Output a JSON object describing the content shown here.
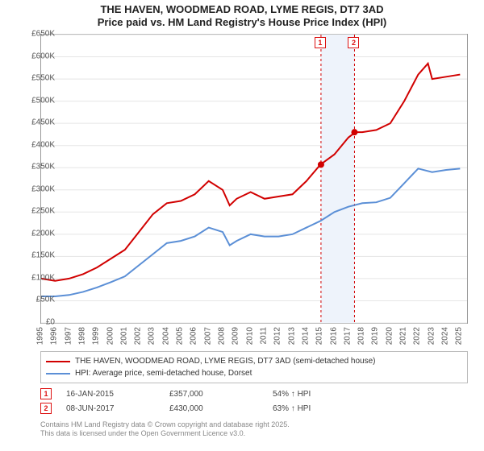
{
  "title": {
    "line1": "THE HAVEN, WOODMEAD ROAD, LYME REGIS, DT7 3AD",
    "line2": "Price paid vs. HM Land Registry's House Price Index (HPI)",
    "fontsize": 13,
    "color": "#222222"
  },
  "chart": {
    "type": "line",
    "background_color": "#ffffff",
    "border_color": "#999999",
    "grid_color": "#e5e5e5",
    "xlim": [
      1995,
      2025.5
    ],
    "ylim": [
      0,
      650
    ],
    "ytick_step": 50,
    "y_tick_labels": [
      "£0",
      "£50K",
      "£100K",
      "£150K",
      "£200K",
      "£250K",
      "£300K",
      "£350K",
      "£400K",
      "£450K",
      "£500K",
      "£550K",
      "£600K",
      "£650K"
    ],
    "x_tick_labels": [
      "1995",
      "1996",
      "1997",
      "1998",
      "1999",
      "2000",
      "2001",
      "2002",
      "2003",
      "2004",
      "2005",
      "2006",
      "2007",
      "2008",
      "2009",
      "2010",
      "2011",
      "2012",
      "2013",
      "2014",
      "2015",
      "2016",
      "2017",
      "2018",
      "2019",
      "2020",
      "2021",
      "2022",
      "2023",
      "2024",
      "2025"
    ],
    "series": [
      {
        "name": "THE HAVEN, WOODMEAD ROAD, LYME REGIS, DT7 3AD (semi-detached house)",
        "color": "#d10000",
        "line_width": 2,
        "data": [
          [
            1995,
            100
          ],
          [
            1996,
            95
          ],
          [
            1997,
            100
          ],
          [
            1998,
            110
          ],
          [
            1999,
            125
          ],
          [
            2000,
            145
          ],
          [
            2001,
            165
          ],
          [
            2002,
            205
          ],
          [
            2003,
            245
          ],
          [
            2004,
            270
          ],
          [
            2005,
            275
          ],
          [
            2006,
            290
          ],
          [
            2007,
            320
          ],
          [
            2008,
            300
          ],
          [
            2008.5,
            265
          ],
          [
            2009,
            280
          ],
          [
            2010,
            295
          ],
          [
            2011,
            280
          ],
          [
            2012,
            285
          ],
          [
            2013,
            290
          ],
          [
            2014,
            320
          ],
          [
            2015,
            357
          ],
          [
            2016,
            380
          ],
          [
            2017,
            418
          ],
          [
            2017.5,
            430
          ],
          [
            2018,
            430
          ],
          [
            2019,
            435
          ],
          [
            2020,
            450
          ],
          [
            2021,
            500
          ],
          [
            2022,
            560
          ],
          [
            2022.7,
            585
          ],
          [
            2023,
            550
          ],
          [
            2024,
            555
          ],
          [
            2025,
            560
          ]
        ]
      },
      {
        "name": "HPI: Average price, semi-detached house, Dorset",
        "color": "#5b8fd6",
        "line_width": 2,
        "data": [
          [
            1995,
            60
          ],
          [
            1996,
            60
          ],
          [
            1997,
            63
          ],
          [
            1998,
            70
          ],
          [
            1999,
            80
          ],
          [
            2000,
            92
          ],
          [
            2001,
            105
          ],
          [
            2002,
            130
          ],
          [
            2003,
            155
          ],
          [
            2004,
            180
          ],
          [
            2005,
            185
          ],
          [
            2006,
            195
          ],
          [
            2007,
            215
          ],
          [
            2008,
            205
          ],
          [
            2008.5,
            175
          ],
          [
            2009,
            185
          ],
          [
            2010,
            200
          ],
          [
            2011,
            195
          ],
          [
            2012,
            195
          ],
          [
            2013,
            200
          ],
          [
            2014,
            215
          ],
          [
            2015,
            230
          ],
          [
            2016,
            250
          ],
          [
            2017,
            262
          ],
          [
            2018,
            270
          ],
          [
            2019,
            272
          ],
          [
            2020,
            282
          ],
          [
            2021,
            315
          ],
          [
            2022,
            348
          ],
          [
            2023,
            340
          ],
          [
            2024,
            345
          ],
          [
            2025,
            348
          ]
        ]
      }
    ],
    "sale_markers": [
      {
        "label": "1",
        "x": 2015.04,
        "y": 357
      },
      {
        "label": "2",
        "x": 2017.44,
        "y": 430
      }
    ],
    "sale_band": {
      "x_from": 2015.04,
      "x_to": 2017.44,
      "fill": "#eef3fb"
    },
    "sale_vline_color": "#d10000",
    "marker_dot_color": "#d10000",
    "marker_dot_radius": 4
  },
  "legend": {
    "border_color": "#bbbbbb",
    "fontsize": 10
  },
  "sales_table": {
    "rows": [
      {
        "marker": "1",
        "date": "16-JAN-2015",
        "price": "£357,000",
        "hpi_diff": "54% ↑ HPI"
      },
      {
        "marker": "2",
        "date": "08-JUN-2017",
        "price": "£430,000",
        "hpi_diff": "63% ↑ HPI"
      }
    ]
  },
  "footer": {
    "line1": "Contains HM Land Registry data © Crown copyright and database right 2025.",
    "line2": "This data is licensed under the Open Government Licence v3.0.",
    "color": "#888888",
    "fontsize": 9
  }
}
